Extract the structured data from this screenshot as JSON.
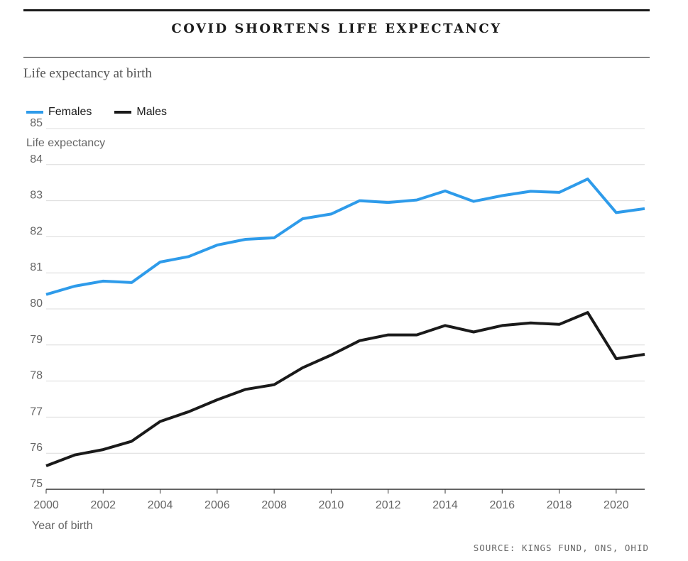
{
  "header": {
    "title": "COVID SHORTENS LIFE EXPECTANCY",
    "subtitle": "Life expectancy at birth",
    "source": "SOURCE: KINGS FUND, ONS, OHID"
  },
  "chart_data": {
    "type": "line",
    "title": "COVID SHORTENS LIFE EXPECTANCY",
    "subtitle": "Life expectancy at birth",
    "xlabel": "Year of birth",
    "ylabel": "Life expectancy",
    "xlim": [
      2000,
      2021
    ],
    "ylim": [
      75,
      85
    ],
    "x_ticks": [
      "2000",
      "2002",
      "2004",
      "2006",
      "2008",
      "2010",
      "2012",
      "2014",
      "2016",
      "2018",
      "2020"
    ],
    "y_ticks": [
      "75",
      "76",
      "77",
      "78",
      "79",
      "80",
      "81",
      "82",
      "83",
      "84",
      "85"
    ],
    "grid": true,
    "legend": "top-left",
    "x": [
      2000,
      2001,
      2002,
      2003,
      2004,
      2005,
      2006,
      2007,
      2008,
      2009,
      2010,
      2011,
      2012,
      2013,
      2014,
      2015,
      2016,
      2017,
      2018,
      2019,
      2020,
      2021
    ],
    "series": [
      {
        "name": "Females",
        "color": "#2e9bea",
        "values": [
          80.4,
          80.63,
          80.77,
          80.73,
          81.3,
          81.45,
          81.77,
          81.93,
          81.97,
          82.5,
          82.63,
          83.0,
          82.95,
          83.02,
          83.27,
          82.98,
          83.14,
          83.26,
          83.23,
          83.6,
          82.67,
          82.78
        ]
      },
      {
        "name": "Males",
        "color": "#1a1a1a",
        "values": [
          75.65,
          75.95,
          76.1,
          76.33,
          76.88,
          77.15,
          77.48,
          77.77,
          77.9,
          78.37,
          78.72,
          79.12,
          79.28,
          79.28,
          79.54,
          79.36,
          79.54,
          79.61,
          79.57,
          79.9,
          78.62,
          78.74
        ]
      }
    ]
  }
}
